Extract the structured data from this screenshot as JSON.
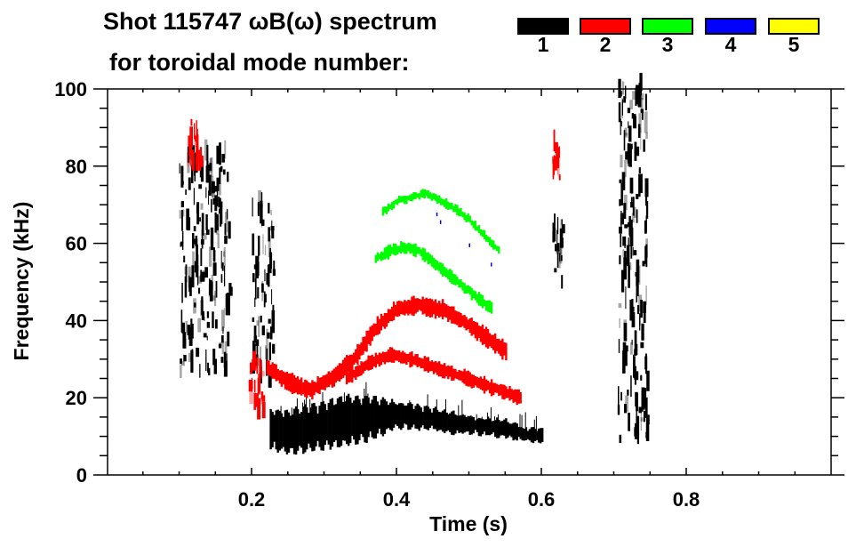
{
  "chart_data": {
    "type": "heatmap",
    "title_line1": "Shot 115747 ωB(ω) spectrum",
    "title_line2": "for toroidal mode number:",
    "xlabel": "Time (s)",
    "ylabel": "Frequency (kHz)",
    "xlim": [
      0.0,
      1.0
    ],
    "ylim": [
      0,
      100
    ],
    "x_ticks": [
      0.2,
      0.4,
      0.6,
      0.8
    ],
    "x_tick_labels": [
      "0.2",
      "0.4",
      "0.6",
      "0.8"
    ],
    "x_minor_step": 0.05,
    "y_ticks": [
      0,
      20,
      40,
      60,
      80,
      100
    ],
    "y_tick_labels": [
      "0",
      "20",
      "40",
      "60",
      "80",
      "100"
    ],
    "y_minor_step": 5,
    "grid": false,
    "legend": {
      "placement": "top-right",
      "entries": [
        {
          "label": "1",
          "color": "#000000"
        },
        {
          "label": "2",
          "color": "#ff0000"
        },
        {
          "label": "3",
          "color": "#00ff00"
        },
        {
          "label": "4",
          "color": "#0000ff"
        },
        {
          "label": "5",
          "color": "#ffff00"
        }
      ]
    },
    "series": [
      {
        "name": "n=1",
        "color": "#000000",
        "features": [
          {
            "kind": "band",
            "t": [
              0.225,
              0.25,
              0.275,
              0.3,
              0.325,
              0.35,
              0.375,
              0.4,
              0.425,
              0.45,
              0.475,
              0.5,
              0.525,
              0.55,
              0.575,
              0.6
            ],
            "f": [
              12,
              11,
              12,
              13,
              14,
              14.5,
              15,
              15.5,
              15,
              14.5,
              13.5,
              13,
              12.5,
              12,
              10.5,
              10
            ],
            "half_width": [
              5,
              5.5,
              6,
              6,
              6.5,
              6,
              5,
              3,
              3,
              2.5,
              2.5,
              2,
              2,
              2,
              1.5,
              1.5
            ]
          },
          {
            "kind": "burst",
            "t": [
              0.1,
              0.17
            ],
            "f": [
              25,
              82
            ]
          },
          {
            "kind": "burst",
            "t": [
              0.2,
              0.23
            ],
            "f": [
              22,
              70
            ]
          },
          {
            "kind": "burst",
            "t": [
              0.615,
              0.63
            ],
            "f": [
              48,
              65
            ]
          },
          {
            "kind": "burst",
            "t": [
              0.705,
              0.745
            ],
            "f": [
              8,
              100
            ]
          }
        ]
      },
      {
        "name": "n=2",
        "color": "#ff0000",
        "features": [
          {
            "kind": "track",
            "t": [
              0.22,
              0.25,
              0.28,
              0.31,
              0.34,
              0.37,
              0.4,
              0.43,
              0.46,
              0.49,
              0.52,
              0.55
            ],
            "f": [
              28,
              24,
              22,
              25,
              30,
              38,
              43,
              44,
              43,
              40,
              36,
              32
            ],
            "half_width": 1.8
          },
          {
            "kind": "track",
            "t": [
              0.33,
              0.36,
              0.39,
              0.42,
              0.45,
              0.48,
              0.51,
              0.54,
              0.57
            ],
            "f": [
              25,
              29,
              31,
              30,
              28,
              26,
              24,
              22,
              20
            ],
            "half_width": 1.3
          },
          {
            "kind": "burst",
            "t": [
              0.195,
              0.215
            ],
            "f": [
              14,
              28
            ]
          },
          {
            "kind": "burst",
            "t": [
              0.615,
              0.625
            ],
            "f": [
              76,
              84
            ]
          },
          {
            "kind": "burst",
            "t": [
              0.11,
              0.13
            ],
            "f": [
              78,
              92
            ]
          }
        ]
      },
      {
        "name": "n=3",
        "color": "#00ff00",
        "features": [
          {
            "kind": "track",
            "t": [
              0.37,
              0.39,
              0.41,
              0.43,
              0.45,
              0.47,
              0.49,
              0.51,
              0.53
            ],
            "f": [
              56,
              58,
              59,
              58,
              55,
              52,
              49,
              46,
              43
            ],
            "half_width": 1.0
          },
          {
            "kind": "track",
            "t": [
              0.38,
              0.4,
              0.42,
              0.44,
              0.46,
              0.48,
              0.5,
              0.52,
              0.54
            ],
            "f": [
              68,
              71,
              72,
              73,
              71,
              69,
              66,
              62,
              58
            ],
            "half_width": 0.6
          }
        ]
      },
      {
        "name": "n=4",
        "color": "#0000ff",
        "features": [
          {
            "kind": "dots",
            "t": [
              0.455,
              0.46,
              0.5,
              0.53
            ],
            "f": [
              67,
              65,
              59,
              54
            ]
          }
        ]
      },
      {
        "name": "n=5",
        "color": "#ffff00",
        "features": []
      }
    ]
  }
}
